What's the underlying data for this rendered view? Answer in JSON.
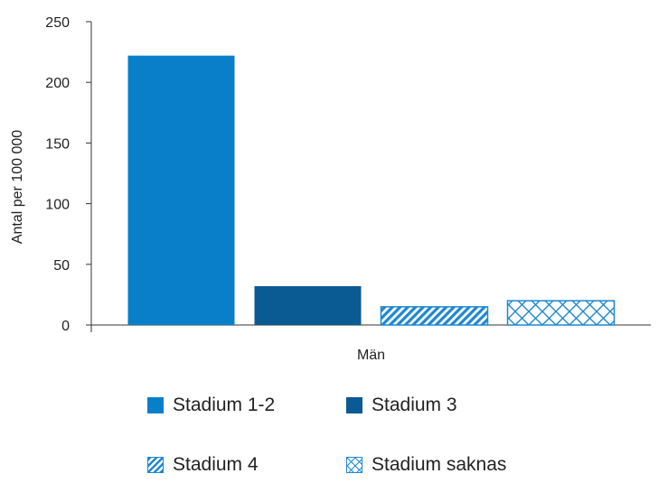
{
  "chart_data": {
    "type": "bar",
    "title": "",
    "xlabel": "",
    "ylabel": "Antal per 100 000",
    "categories": [
      "Män"
    ],
    "ylim": [
      0,
      250
    ],
    "yticks": [
      "0",
      "50",
      "100",
      "150",
      "200",
      "250"
    ],
    "grid": false,
    "legend_position": "bottom",
    "series": [
      {
        "name": "Stadium 1-2",
        "values": [
          222
        ],
        "color": "#0a7fc9",
        "pattern": "solid"
      },
      {
        "name": "Stadium 3",
        "values": [
          32
        ],
        "color": "#0a5a94",
        "pattern": "solid"
      },
      {
        "name": "Stadium 4",
        "values": [
          15
        ],
        "color": "#1e88d0",
        "pattern": "diagonal"
      },
      {
        "name": "Stadium saknas",
        "values": [
          20
        ],
        "color": "#1e88d0",
        "pattern": "crosshatch"
      }
    ]
  }
}
